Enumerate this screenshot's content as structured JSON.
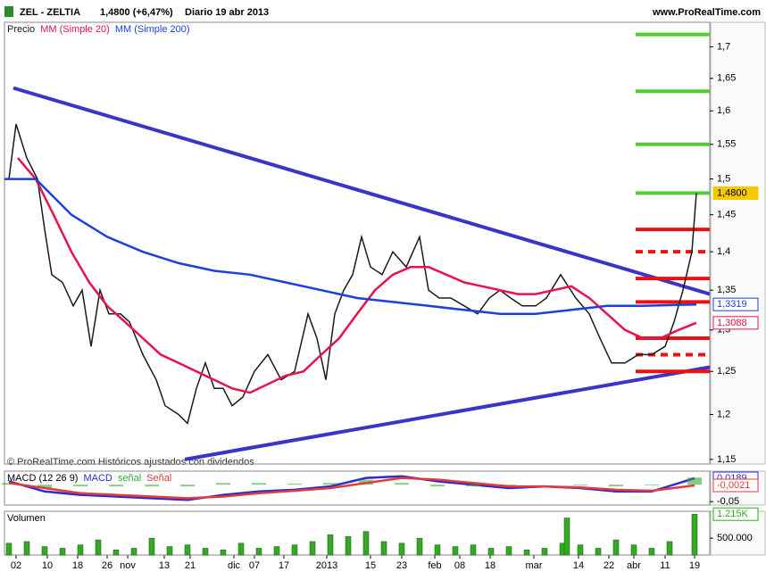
{
  "chart_data": [
    {
      "type": "line",
      "title": "ZEL - ZELTIA",
      "subtitle": "1,4800 (+6,47%)",
      "period": "Diario 19 abr 2013",
      "source": "www.ProRealTime.com",
      "note": "© ProRealTime.com Históricos ajustados con dividendos",
      "log_scale": true,
      "xlim": [
        5,
        795
      ],
      "ylim": [
        1.145,
        1.74
      ],
      "xticks": [
        {
          "value": 18,
          "label": "02"
        },
        {
          "value": 53,
          "label": "10"
        },
        {
          "value": 87,
          "label": "18"
        },
        {
          "value": 120,
          "label": "26"
        },
        {
          "value": 143,
          "label": "nov"
        },
        {
          "value": 184,
          "label": "13"
        },
        {
          "value": 213,
          "label": "21"
        },
        {
          "value": 262,
          "label": "dic"
        },
        {
          "value": 285,
          "label": "07"
        },
        {
          "value": 318,
          "label": "17"
        },
        {
          "value": 366,
          "label": "2013"
        },
        {
          "value": 415,
          "label": "15"
        },
        {
          "value": 450,
          "label": "23"
        },
        {
          "value": 487,
          "label": "feb"
        },
        {
          "value": 515,
          "label": "08"
        },
        {
          "value": 549,
          "label": "18"
        },
        {
          "value": 598,
          "label": "mar"
        },
        {
          "value": 648,
          "label": "14"
        },
        {
          "value": 682,
          "label": "22"
        },
        {
          "value": 710,
          "label": "abr"
        },
        {
          "value": 745,
          "label": "11"
        },
        {
          "value": 778,
          "label": "19"
        }
      ],
      "yticks": [
        {
          "value": 1.15,
          "label": "1,15"
        },
        {
          "value": 1.2,
          "label": "1,2"
        },
        {
          "value": 1.25,
          "label": "1,25"
        },
        {
          "value": 1.3,
          "label": "1,3"
        },
        {
          "value": 1.35,
          "label": "1,35"
        },
        {
          "value": 1.4,
          "label": "1,4"
        },
        {
          "value": 1.45,
          "label": "1,45"
        },
        {
          "value": 1.5,
          "label": "1,5"
        },
        {
          "value": 1.55,
          "label": "1,55"
        },
        {
          "value": 1.6,
          "label": "1,6"
        },
        {
          "value": 1.65,
          "label": "1,65"
        },
        {
          "value": 1.7,
          "label": "1,7"
        }
      ],
      "series": [
        {
          "name": "Precio",
          "color": "#1a1a1a",
          "x": [
            10,
            18,
            30,
            42,
            50,
            58,
            70,
            82,
            92,
            102,
            112,
            122,
            135,
            145,
            160,
            175,
            185,
            200,
            210,
            220,
            230,
            240,
            250,
            260,
            272,
            285,
            300,
            315,
            330,
            345,
            355,
            365,
            375,
            385,
            395,
            405,
            415,
            428,
            440,
            455,
            470,
            480,
            492,
            505,
            520,
            535,
            548,
            560,
            572,
            585,
            600,
            612,
            628,
            645,
            660,
            672,
            685,
            700,
            715,
            730,
            745,
            755,
            765,
            775,
            780
          ],
          "values": [
            1.5,
            1.58,
            1.53,
            1.5,
            1.43,
            1.37,
            1.36,
            1.33,
            1.35,
            1.28,
            1.35,
            1.32,
            1.32,
            1.31,
            1.27,
            1.24,
            1.21,
            1.2,
            1.19,
            1.23,
            1.26,
            1.23,
            1.23,
            1.21,
            1.22,
            1.25,
            1.27,
            1.24,
            1.25,
            1.32,
            1.29,
            1.24,
            1.32,
            1.35,
            1.37,
            1.42,
            1.38,
            1.37,
            1.4,
            1.38,
            1.42,
            1.35,
            1.34,
            1.34,
            1.33,
            1.32,
            1.34,
            1.35,
            1.34,
            1.33,
            1.33,
            1.34,
            1.37,
            1.34,
            1.32,
            1.29,
            1.26,
            1.26,
            1.27,
            1.27,
            1.28,
            1.31,
            1.35,
            1.4,
            1.48
          ]
        },
        {
          "name": "MM (Simple 20)",
          "color": "#e8134a",
          "x": [
            20,
            40,
            60,
            80,
            100,
            120,
            140,
            160,
            180,
            200,
            220,
            240,
            260,
            280,
            300,
            320,
            340,
            360,
            380,
            400,
            420,
            440,
            460,
            480,
            500,
            520,
            540,
            560,
            580,
            600,
            620,
            640,
            660,
            680,
            700,
            720,
            740,
            760,
            780
          ],
          "values": [
            1.53,
            1.5,
            1.45,
            1.4,
            1.36,
            1.33,
            1.31,
            1.29,
            1.27,
            1.26,
            1.25,
            1.24,
            1.23,
            1.225,
            1.235,
            1.245,
            1.25,
            1.27,
            1.29,
            1.32,
            1.35,
            1.37,
            1.38,
            1.38,
            1.37,
            1.36,
            1.355,
            1.35,
            1.345,
            1.345,
            1.35,
            1.355,
            1.34,
            1.32,
            1.3,
            1.29,
            1.29,
            1.3,
            1.3088
          ]
        },
        {
          "name": "MM (Simple 200)",
          "color": "#1c3fe0",
          "x": [
            5,
            40,
            80,
            120,
            160,
            200,
            240,
            280,
            320,
            360,
            400,
            440,
            480,
            520,
            560,
            600,
            640,
            680,
            720,
            780
          ],
          "values": [
            1.5,
            1.5,
            1.45,
            1.42,
            1.4,
            1.385,
            1.375,
            1.37,
            1.36,
            1.35,
            1.34,
            1.335,
            1.33,
            1.325,
            1.32,
            1.32,
            1.325,
            1.33,
            1.33,
            1.3319
          ]
        }
      ],
      "trendlines": [
        {
          "color": "#3a35c8",
          "x": [
            15,
            795
          ],
          "values": [
            1.635,
            1.345
          ]
        },
        {
          "color": "#3a35c8",
          "x": [
            207,
            795
          ],
          "values": [
            1.15,
            1.255
          ]
        }
      ],
      "levels": [
        {
          "value": 1.72,
          "color": "#55cc33",
          "dashed": false
        },
        {
          "value": 1.63,
          "color": "#55cc33",
          "dashed": false
        },
        {
          "value": 1.55,
          "color": "#55cc33",
          "dashed": false
        },
        {
          "value": 1.48,
          "color": "#55cc33",
          "dashed": false
        },
        {
          "value": 1.43,
          "color": "#ee1111",
          "dashed": false
        },
        {
          "value": 1.4,
          "color": "#ee1111",
          "dashed": true
        },
        {
          "value": 1.365,
          "color": "#ee1111",
          "dashed": false
        },
        {
          "value": 1.335,
          "color": "#ee1111",
          "dashed": false
        },
        {
          "value": 1.29,
          "color": "#ee1111",
          "dashed": false
        },
        {
          "value": 1.27,
          "color": "#ee1111",
          "dashed": true
        },
        {
          "value": 1.25,
          "color": "#ee1111",
          "dashed": false
        }
      ],
      "price_labels": [
        {
          "value": 1.48,
          "label": "1,4800",
          "color": "#f5c800"
        },
        {
          "value": 1.3319,
          "label": "1,3319",
          "color": "#1c3fe0"
        },
        {
          "value": 1.3088,
          "label": "1,3088",
          "color": "#e8134a"
        }
      ]
    },
    {
      "type": "line",
      "title": "MACD (12 26 9)",
      "xlim": [
        5,
        795
      ],
      "ylim": [
        -0.06,
        0.04
      ],
      "yticks": [
        {
          "value": -0.05,
          "label": "-0,05"
        }
      ],
      "series": [
        {
          "name": "MACD",
          "color": "#2b2bd0",
          "x": [
            10,
            50,
            90,
            130,
            170,
            210,
            250,
            290,
            330,
            370,
            410,
            450,
            490,
            530,
            570,
            610,
            650,
            690,
            730,
            778
          ],
          "values": [
            0.01,
            -0.02,
            -0.03,
            -0.035,
            -0.04,
            -0.045,
            -0.03,
            -0.02,
            -0.015,
            -0.005,
            0.02,
            0.025,
            0.01,
            0.0,
            -0.01,
            -0.005,
            -0.01,
            -0.02,
            -0.02,
            0.0189
          ]
        },
        {
          "name": "señal",
          "color": "#33aa33",
          "x": [
            10,
            50,
            90,
            130,
            170,
            210,
            250,
            290,
            330,
            370,
            410,
            450,
            490,
            530,
            570,
            610,
            650,
            690,
            730,
            778
          ],
          "values": [
            0.005,
            -0.01,
            -0.005,
            -0.005,
            -0.005,
            -0.005,
            0.005,
            0.005,
            0.003,
            0.005,
            0.015,
            0.005,
            -0.005,
            -0.005,
            -0.005,
            0,
            -0.002,
            -0.005,
            -0.002,
            0.021
          ]
        },
        {
          "name": "Señal",
          "color": "#e23b3b",
          "x": [
            10,
            50,
            90,
            130,
            170,
            210,
            250,
            290,
            330,
            370,
            410,
            450,
            490,
            530,
            570,
            610,
            650,
            690,
            730,
            778
          ],
          "values": [
            0.005,
            -0.01,
            -0.025,
            -0.03,
            -0.035,
            -0.04,
            -0.035,
            -0.025,
            -0.018,
            -0.01,
            0.005,
            0.02,
            0.015,
            0.005,
            -0.005,
            -0.005,
            -0.008,
            -0.015,
            -0.018,
            -0.0021
          ]
        }
      ],
      "price_labels": [
        {
          "value": 0.0189,
          "label": "0,0189",
          "color": "#2b2bd0"
        },
        {
          "value": -0.0021,
          "label": "-0,0021",
          "color": "#e23b3b"
        }
      ]
    },
    {
      "type": "bar",
      "title": "Volumen",
      "xlim": [
        5,
        795
      ],
      "ylim": [
        0,
        1300000
      ],
      "yticks": [
        {
          "value": 500000,
          "label": "500.000"
        }
      ],
      "series": [
        {
          "name": "Volumen",
          "color": "#33aa22",
          "x": [
            10,
            30,
            50,
            70,
            90,
            110,
            130,
            150,
            170,
            190,
            210,
            230,
            250,
            270,
            290,
            310,
            330,
            350,
            370,
            390,
            410,
            430,
            450,
            470,
            490,
            510,
            530,
            550,
            570,
            590,
            610,
            630,
            635,
            650,
            670,
            690,
            710,
            730,
            750,
            778
          ],
          "values": [
            350000,
            400000,
            250000,
            200000,
            300000,
            450000,
            150000,
            200000,
            500000,
            250000,
            300000,
            200000,
            150000,
            350000,
            200000,
            250000,
            300000,
            400000,
            600000,
            550000,
            700000,
            400000,
            350000,
            500000,
            300000,
            250000,
            300000,
            200000,
            250000,
            150000,
            200000,
            350000,
            1100000,
            300000,
            200000,
            450000,
            300000,
            200000,
            400000,
            1215000
          ]
        }
      ],
      "price_labels": [
        {
          "value": 1215000,
          "label": "1.215K",
          "color": "#33aa22"
        }
      ]
    }
  ]
}
